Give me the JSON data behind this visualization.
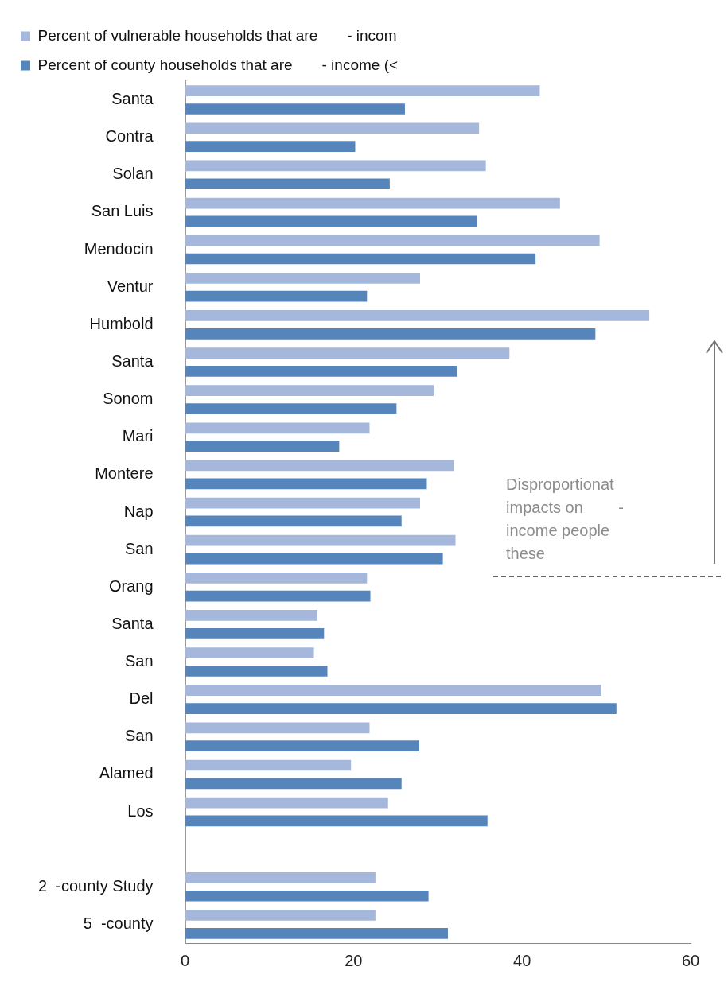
{
  "chart_data": {
    "type": "bar",
    "orientation": "horizontal",
    "categories": [
      "Santa",
      "Contra",
      "Solan",
      "San Luis",
      "Mendocin",
      "Ventur",
      "Humbold",
      "Santa",
      "Sonom",
      "Mari",
      "Montere",
      "Nap",
      "San",
      "Orang",
      "Santa",
      "San",
      "Del",
      "San",
      "Alamed",
      "Los",
      null,
      "2  -county Study",
      "5  -county"
    ],
    "series": [
      {
        "name": "Percent of vulnerable households that are       - incom",
        "color": "#a5b8db",
        "values": [
          42.1,
          34.9,
          35.7,
          44.5,
          49.2,
          27.9,
          55.1,
          38.5,
          29.5,
          21.9,
          31.9,
          27.9,
          32.1,
          21.6,
          15.7,
          15.3,
          49.4,
          21.9,
          19.7,
          24.1,
          null,
          22.6,
          22.6
        ]
      },
      {
        "name": "Percent of county households that are       - income (<",
        "color": "#5585bb",
        "values": [
          26.1,
          20.2,
          24.3,
          34.7,
          41.6,
          21.6,
          48.7,
          32.3,
          25.1,
          18.3,
          28.7,
          25.7,
          30.6,
          22.0,
          16.5,
          16.9,
          51.2,
          27.8,
          25.7,
          35.9,
          null,
          28.9,
          31.2
        ]
      }
    ],
    "xlim": [
      0,
      60
    ],
    "xticks": [
      0,
      20,
      40,
      60
    ],
    "grid": false,
    "legend": "top left",
    "annotations": [
      "Disproportionat\nimpacts on        -\nincome people\nthese"
    ]
  }
}
